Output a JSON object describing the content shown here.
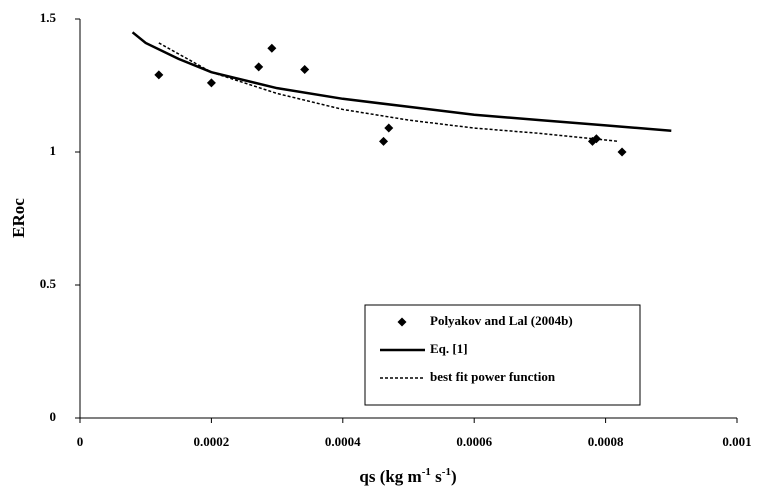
{
  "chart_data": {
    "type": "scatter",
    "ylabel": "ERoc",
    "xlabel": [
      "qs (kg m",
      "-1",
      " s",
      "-1",
      ")"
    ],
    "xlim": [
      0,
      0.001
    ],
    "xticks": [
      0,
      0.0002,
      0.0004,
      0.0006,
      0.0008,
      0.001
    ],
    "ylim": [
      0,
      1.5
    ],
    "yticks": [
      0,
      0.5,
      1,
      1.5
    ],
    "grid": false,
    "legend": "lower right",
    "series": [
      {
        "name": "Polyakov and Lal (2004b)",
        "style": "markers",
        "color": "#000000",
        "x": [
          0.00012,
          0.0002,
          0.000272,
          0.000292,
          0.000342,
          0.000462,
          0.00047,
          0.00078,
          0.000786,
          0.000825
        ],
        "values": [
          1.29,
          1.26,
          1.32,
          1.39,
          1.31,
          1.04,
          1.09,
          1.04,
          1.05,
          1.0
        ]
      },
      {
        "name": "Eq. [1]",
        "style": "solid",
        "color": "#000000",
        "x": [
          8e-05,
          0.0001,
          0.00015,
          0.0002,
          0.0003,
          0.0004,
          0.0005,
          0.0006,
          0.0007,
          0.0008,
          0.0009
        ],
        "values": [
          1.45,
          1.41,
          1.35,
          1.3,
          1.24,
          1.2,
          1.17,
          1.14,
          1.12,
          1.1,
          1.08
        ]
      },
      {
        "name": "best fit power function",
        "style": "dotted",
        "color": "#000000",
        "x": [
          0.00012,
          0.0002,
          0.0003,
          0.0004,
          0.0005,
          0.0006,
          0.0007,
          0.00082
        ],
        "values": [
          1.41,
          1.3,
          1.22,
          1.16,
          1.12,
          1.09,
          1.07,
          1.04
        ]
      }
    ]
  }
}
